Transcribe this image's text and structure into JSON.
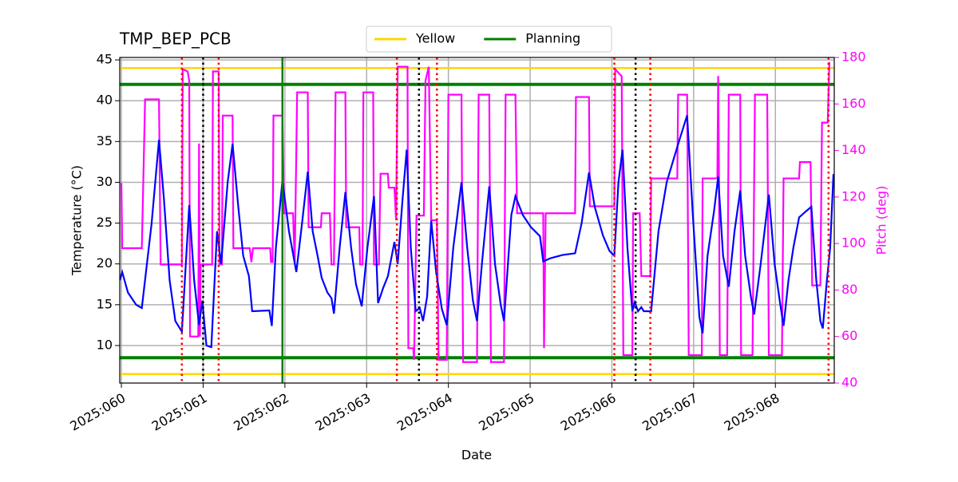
{
  "chart_data": {
    "type": "line",
    "title": "TMP_BEP_PCB",
    "xlabel": "Date",
    "ylabel": "Temperature (°C)",
    "y2label": "Pitch (deg)",
    "xlim": [
      59.98,
      68.72
    ],
    "xticks": [
      {
        "value": 60,
        "label": "2025:060"
      },
      {
        "value": 61,
        "label": "2025:061"
      },
      {
        "value": 62,
        "label": "2025:062"
      },
      {
        "value": 63,
        "label": "2025:063"
      },
      {
        "value": 64,
        "label": "2025:064"
      },
      {
        "value": 65,
        "label": "2025:065"
      },
      {
        "value": 66,
        "label": "2025:066"
      },
      {
        "value": 67,
        "label": "2025:067"
      },
      {
        "value": 68,
        "label": "2025:068"
      }
    ],
    "ylim": [
      5.4,
      45.3
    ],
    "yticks": [
      10,
      15,
      20,
      25,
      30,
      35,
      40,
      45
    ],
    "y2lim": [
      40,
      180
    ],
    "y2ticks": [
      40,
      60,
      80,
      100,
      120,
      140,
      160,
      180
    ],
    "grid": true,
    "legend": "upper center",
    "series": [
      {
        "color": "#0000ff",
        "x": [
          59.98,
          60.01,
          60.08,
          60.18,
          60.25,
          60.37,
          60.46,
          60.52,
          60.59,
          60.66,
          60.74,
          60.83,
          60.89,
          60.95,
          60.99,
          61.04,
          61.1,
          61.17,
          61.22,
          61.3,
          61.36,
          61.43,
          61.49,
          61.56,
          61.6,
          61.81,
          61.84,
          61.89,
          61.97,
          62.05,
          62.14,
          62.21,
          62.28,
          62.34,
          62.4,
          62.45,
          62.52,
          62.57,
          62.6,
          62.67,
          62.74,
          62.81,
          62.87,
          62.94,
          63.01,
          63.09,
          63.14,
          63.2,
          63.26,
          63.34,
          63.38,
          63.44,
          63.49,
          63.54,
          63.6,
          63.65,
          63.69,
          63.74,
          63.79,
          63.85,
          63.92,
          63.98,
          64.06,
          64.16,
          64.23,
          64.3,
          64.35,
          64.41,
          64.5,
          64.57,
          64.64,
          64.68,
          64.77,
          64.82,
          64.91,
          65.01,
          65.12,
          65.16,
          65.25,
          65.4,
          65.55,
          65.63,
          65.72,
          65.79,
          65.89,
          65.97,
          66.03,
          66.08,
          66.13,
          66.19,
          66.25,
          66.28,
          66.32,
          66.36,
          66.39,
          66.48,
          66.57,
          66.67,
          66.82,
          66.92,
          66.99,
          67.07,
          67.11,
          67.17,
          67.25,
          67.3,
          67.36,
          67.43,
          67.5,
          67.57,
          67.63,
          67.7,
          67.74,
          67.82,
          67.92,
          67.99,
          68.06,
          68.1,
          68.16,
          68.22,
          68.29,
          68.38,
          68.44,
          68.5,
          68.55,
          68.58,
          68.63,
          68.67,
          68.71
        ],
        "values": [
          18,
          19,
          16.5,
          15,
          14.6,
          25,
          35.2,
          28,
          18,
          13,
          11.7,
          27.2,
          18,
          12.5,
          15.5,
          10,
          9.8,
          24,
          20,
          30,
          34.7,
          27,
          21,
          18.5,
          14.2,
          14.3,
          12.4,
          22,
          30.2,
          24,
          19,
          25,
          31.3,
          24,
          21,
          18.3,
          16.5,
          15.8,
          13.9,
          22,
          28.8,
          22,
          17.5,
          14.8,
          22,
          28.3,
          15.2,
          17,
          18.5,
          22.7,
          20,
          28,
          34,
          22,
          14.2,
          14.6,
          13,
          16,
          25.3,
          19,
          14.5,
          12.5,
          22,
          30,
          22,
          15.5,
          13,
          20,
          29.5,
          20,
          15,
          13,
          26,
          28.3,
          26,
          24.5,
          23.4,
          20.3,
          20.7,
          21.1,
          21.3,
          25,
          31.2,
          27,
          23.5,
          21.6,
          21,
          30,
          34,
          22,
          14.2,
          15.3,
          14.2,
          14.7,
          14.2,
          14.2,
          24,
          30,
          35,
          38.2,
          26,
          13.5,
          11.5,
          21,
          26.5,
          30.7,
          21,
          17.2,
          24,
          29,
          21,
          16,
          13.8,
          20,
          28.5,
          20,
          15,
          12.4,
          18,
          22,
          25.7,
          26.5,
          27,
          18,
          13,
          12.1,
          18,
          22,
          31
        ]
      },
      {
        "color": "#ff00ff",
        "axis": "y2",
        "x": [
          60.0,
          60.01,
          60.25,
          60.27,
          60.29,
          60.46,
          60.48,
          60.74,
          60.75,
          60.81,
          60.83,
          60.84,
          60.94,
          60.95,
          60.96,
          60.97,
          61.11,
          61.12,
          61.19,
          61.2,
          61.23,
          61.24,
          61.36,
          61.37,
          61.57,
          61.59,
          61.61,
          61.82,
          61.83,
          61.85,
          61.86,
          61.97,
          61.99,
          62.1,
          62.12,
          62.15,
          62.28,
          62.29,
          62.44,
          62.45,
          62.55,
          62.57,
          62.6,
          62.62,
          62.74,
          62.75,
          62.91,
          62.92,
          62.95,
          62.96,
          63.08,
          63.09,
          63.15,
          63.17,
          63.26,
          63.27,
          63.34,
          63.36,
          63.38,
          63.5,
          63.51,
          63.57,
          63.58,
          63.61,
          63.7,
          63.72,
          63.76,
          63.79,
          63.86,
          63.88,
          63.98,
          64.0,
          64.16,
          64.18,
          64.35,
          64.37,
          64.5,
          64.52,
          64.68,
          64.7,
          64.82,
          64.84,
          65.16,
          65.17,
          65.19,
          65.55,
          65.56,
          65.72,
          65.73,
          66.03,
          66.04,
          66.09,
          66.12,
          66.14,
          66.25,
          66.26,
          66.34,
          66.36,
          66.47,
          66.48,
          66.8,
          66.81,
          66.92,
          66.94,
          67.1,
          67.11,
          67.29,
          67.3,
          67.31,
          67.32,
          67.41,
          67.43,
          67.57,
          67.58,
          67.72,
          67.75,
          67.9,
          67.92,
          68.08,
          68.1,
          68.29,
          68.3,
          68.43,
          68.45,
          68.55,
          68.57,
          68.64,
          68.66
        ],
        "values": [
          126,
          98,
          98,
          130,
          162,
          162,
          91,
          91,
          175,
          174,
          170,
          60,
          60,
          143,
          60,
          91,
          91,
          174,
          174,
          91,
          91,
          155,
          155,
          98,
          98,
          92,
          98,
          98,
          92,
          92,
          155,
          155,
          113,
          113,
          91,
          165,
          165,
          107,
          107,
          113,
          113,
          91,
          91,
          165,
          165,
          107,
          107,
          91,
          91,
          165,
          165,
          91,
          91,
          130,
          130,
          124,
          124,
          110,
          176,
          176,
          55,
          55,
          50,
          112,
          112,
          170,
          176,
          110,
          110,
          50,
          50,
          164,
          164,
          49,
          49,
          164,
          164,
          49,
          49,
          164,
          164,
          113,
          113,
          55,
          113,
          113,
          163,
          163,
          116,
          116,
          175,
          173,
          172,
          52,
          52,
          113,
          113,
          86,
          86,
          128,
          128,
          164,
          164,
          52,
          52,
          128,
          128,
          172,
          128,
          52,
          52,
          164,
          164,
          52,
          52,
          164,
          164,
          52,
          52,
          128,
          128,
          135,
          135,
          82,
          82,
          152,
          152,
          178
        ]
      }
    ],
    "limit_lines": [
      {
        "name": "Yellow",
        "color": "#ffd700",
        "values": [
          44,
          6.5
        ]
      },
      {
        "name": "Planning",
        "color": "#008000",
        "values": [
          42,
          8.5
        ]
      }
    ],
    "vlines": [
      {
        "color": "#ff0000",
        "style": "dotted",
        "x": [
          60.74,
          61.19,
          63.37,
          63.86,
          66.03,
          66.47,
          68.65
        ]
      },
      {
        "color": "#000000",
        "style": "dotted",
        "x": [
          61.0,
          63.64,
          66.29
        ]
      },
      {
        "color": "#008000",
        "style": "solid",
        "x": [
          61.97
        ]
      }
    ]
  }
}
